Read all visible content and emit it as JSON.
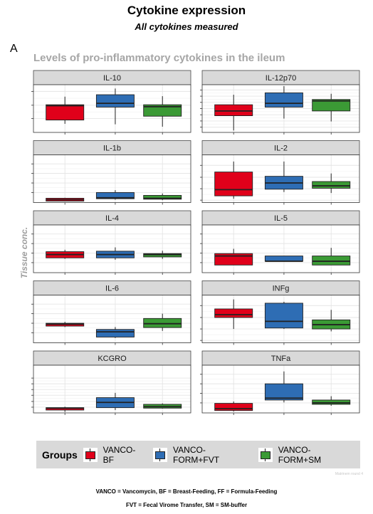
{
  "header": {
    "title": "Cytokine expression",
    "subtitle": "All cytokines measured",
    "panel_tag": "A",
    "figure_title": "Levels of pro-inflammatory cytokines in the ileum"
  },
  "legend": {
    "title": "Groups",
    "items": [
      {
        "label": "VANCO-BF",
        "color": "#e0001a"
      },
      {
        "label": "VANCO-FORM+FVT",
        "color": "#2e6db4"
      },
      {
        "label": "VANCO-FORM+SM",
        "color": "#3b9a35"
      }
    ]
  },
  "footer": {
    "watermark": "Matrinem round 4",
    "note_line1": "VANCO = Vancomycin, BF = Breast-Feeding, FF = Formula-Feeding",
    "note_line2": "FVT = Fecal Virome Transfer, SM = SM-buffer"
  },
  "chart_data": {
    "type": "box",
    "ylabel": "Tissue conc.",
    "xlabel": "",
    "groups": [
      "VANCO-BF",
      "VANCO-FORM+FVT",
      "VANCO-FORM+SM"
    ],
    "colors": [
      "#e0001a",
      "#2e6db4",
      "#3b9a35"
    ],
    "note": "Y tick labels are not printed; values below are in relative panel units (0 = panel bottom, 1 = panel top).",
    "facets": [
      {
        "name": "IL-10",
        "yticks": [
          0.29,
          0.57,
          0.86
        ],
        "boxes": [
          [
            0.18,
            0.26,
            0.56,
            0.58,
            0.75
          ],
          [
            0.17,
            0.53,
            0.61,
            0.79,
            0.92
          ],
          [
            0.12,
            0.34,
            0.54,
            0.58,
            0.76
          ]
        ]
      },
      {
        "name": "IL-12p70",
        "yticks": [
          0.11,
          0.24,
          0.37,
          0.5,
          0.63,
          0.76,
          0.89
        ],
        "boxes": [
          [
            0.04,
            0.35,
            0.45,
            0.58,
            0.79
          ],
          [
            0.29,
            0.53,
            0.61,
            0.83,
            0.97
          ],
          [
            0.23,
            0.45,
            0.66,
            0.69,
            0.81
          ]
        ]
      },
      {
        "name": "IL-1b",
        "yticks": [
          0.21,
          0.41,
          0.61,
          0.81
        ],
        "boxes": [
          [
            0.03,
            0.03,
            0.06,
            0.09,
            0.1
          ],
          [
            0.06,
            0.08,
            0.1,
            0.21,
            0.26
          ],
          [
            0.05,
            0.07,
            0.09,
            0.15,
            0.19
          ]
        ]
      },
      {
        "name": "IL-2",
        "yticks": [
          0.05,
          0.29,
          0.53,
          0.78
        ],
        "boxes": [
          [
            0.08,
            0.14,
            0.27,
            0.64,
            0.86
          ],
          [
            0.22,
            0.28,
            0.41,
            0.55,
            0.86
          ],
          [
            0.2,
            0.3,
            0.35,
            0.44,
            0.61
          ]
        ]
      },
      {
        "name": "IL-4",
        "yticks": [
          0.21,
          0.41,
          0.61,
          0.81
        ],
        "boxes": [
          [
            0.29,
            0.31,
            0.38,
            0.44,
            0.48
          ],
          [
            0.27,
            0.31,
            0.38,
            0.45,
            0.53
          ],
          [
            0.29,
            0.33,
            0.38,
            0.4,
            0.46
          ]
        ]
      },
      {
        "name": "IL-5",
        "yticks": [
          0.21,
          0.41,
          0.61,
          0.81
        ],
        "boxes": [
          [
            0.16,
            0.16,
            0.35,
            0.4,
            0.5
          ],
          [
            0.24,
            0.24,
            0.24,
            0.35,
            0.35
          ],
          [
            0.16,
            0.16,
            0.24,
            0.35,
            0.52
          ]
        ]
      },
      {
        "name": "IL-6",
        "yticks": [
          0.21,
          0.41,
          0.61,
          0.81
        ],
        "boxes": [
          [
            0.33,
            0.35,
            0.39,
            0.41,
            0.44
          ],
          [
            0.1,
            0.12,
            0.23,
            0.28,
            0.33
          ],
          [
            0.25,
            0.32,
            0.4,
            0.51,
            0.61
          ]
        ]
      },
      {
        "name": "INFg",
        "yticks": [
          0.05,
          0.29,
          0.53,
          0.78
        ],
        "boxes": [
          [
            0.29,
            0.53,
            0.59,
            0.71,
            0.91
          ],
          [
            0.29,
            0.31,
            0.45,
            0.83,
            0.86
          ],
          [
            0.24,
            0.29,
            0.38,
            0.48,
            0.69
          ]
        ]
      },
      {
        "name": "KCGRO",
        "yticks": [
          0.12,
          0.24,
          0.37,
          0.49,
          0.61,
          0.73
        ],
        "boxes": [
          [
            0.02,
            0.06,
            0.1,
            0.11,
            0.13
          ],
          [
            0.06,
            0.11,
            0.22,
            0.32,
            0.42
          ],
          [
            0.09,
            0.1,
            0.13,
            0.18,
            0.2
          ]
        ]
      },
      {
        "name": "TNFa",
        "yticks": [
          0.21,
          0.41,
          0.61,
          0.81
        ],
        "boxes": [
          [
            0.03,
            0.05,
            0.09,
            0.2,
            0.24
          ],
          [
            0.22,
            0.27,
            0.31,
            0.61,
            0.87
          ],
          [
            0.15,
            0.18,
            0.21,
            0.27,
            0.35
          ]
        ]
      }
    ]
  }
}
